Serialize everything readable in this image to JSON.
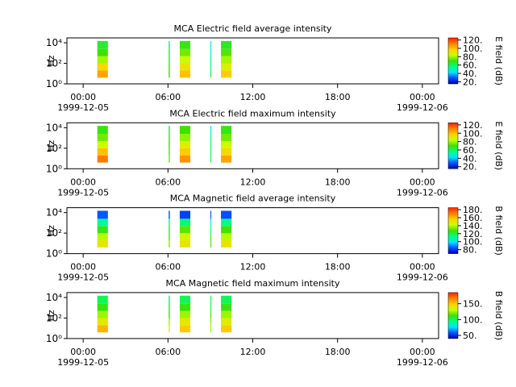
{
  "chart_data": [
    {
      "type": "spectrogram",
      "title": "MCA  Electric field average intensity",
      "y_label": "Hz",
      "colorbar_label": "E field (dB)",
      "log_y": true,
      "ylim": [
        1,
        30000
      ],
      "yticks": [
        {
          "value": 1,
          "label": "10⁰"
        },
        {
          "value": 100,
          "label": "10²"
        },
        {
          "value": 10000,
          "label": "10⁴"
        }
      ],
      "xlim": [
        "1999-12-04T22:51",
        "1999-12-06T01:09"
      ],
      "xticks": [
        {
          "value": "1999-12-05T00:00",
          "label": "00:00\n1999-12-05"
        },
        {
          "value": "1999-12-05T06:00",
          "label": "06:00"
        },
        {
          "value": "1999-12-05T12:00",
          "label": "12:00"
        },
        {
          "value": "1999-12-05T18:00",
          "label": "18:00"
        },
        {
          "value": "1999-12-06T00:00",
          "label": "00:00\n1999-12-06"
        }
      ],
      "clim": [
        15,
        125
      ],
      "cticks": [
        {
          "value": 20,
          "label": "20."
        },
        {
          "value": 40,
          "label": "40."
        },
        {
          "value": 60,
          "label": "60."
        },
        {
          "value": 80,
          "label": "80."
        },
        {
          "value": 100,
          "label": "100."
        },
        {
          "value": 120,
          "label": "120."
        }
      ],
      "colormap": [
        "#0000b4",
        "#0050ff",
        "#00e6ff",
        "#00ff80",
        "#40e000",
        "#c8ff00",
        "#ffd000",
        "#ff8000",
        "#ff2000"
      ],
      "freq_bins": [
        4,
        20,
        100,
        500,
        2500,
        15000
      ],
      "segments": [
        {
          "start": "1999-12-05T01:00",
          "end": "1999-12-05T01:45",
          "values": [
            105,
            95,
            80,
            70,
            65
          ]
        },
        {
          "start": "1999-12-05T06:03",
          "end": "1999-12-05T06:08",
          "values": [
            70,
            68,
            65,
            62,
            60
          ]
        },
        {
          "start": "1999-12-05T06:50",
          "end": "1999-12-05T07:35",
          "values": [
            100,
            92,
            85,
            75,
            68
          ]
        },
        {
          "start": "1999-12-05T09:00",
          "end": "1999-12-05T09:04",
          "values": [
            60,
            58,
            55,
            50,
            48
          ]
        },
        {
          "start": "1999-12-05T09:45",
          "end": "1999-12-05T10:30",
          "values": [
            98,
            88,
            80,
            72,
            66
          ]
        }
      ]
    },
    {
      "type": "spectrogram",
      "title": "MCA  Electric field maximum intensity",
      "y_label": "Hz",
      "colorbar_label": "E field (dB)",
      "log_y": true,
      "ylim": [
        1,
        30000
      ],
      "yticks": [
        {
          "value": 1,
          "label": "10⁰"
        },
        {
          "value": 100,
          "label": "10²"
        },
        {
          "value": 10000,
          "label": "10⁴"
        }
      ],
      "xlim": [
        "1999-12-04T22:51",
        "1999-12-06T01:09"
      ],
      "xticks": [
        {
          "value": "1999-12-05T00:00",
          "label": "00:00\n1999-12-05"
        },
        {
          "value": "1999-12-05T06:00",
          "label": "06:00"
        },
        {
          "value": "1999-12-05T12:00",
          "label": "12:00"
        },
        {
          "value": "1999-12-05T18:00",
          "label": "18:00"
        },
        {
          "value": "1999-12-06T00:00",
          "label": "00:00\n1999-12-06"
        }
      ],
      "clim": [
        15,
        125
      ],
      "cticks": [
        {
          "value": 20,
          "label": "20."
        },
        {
          "value": 40,
          "label": "40."
        },
        {
          "value": 60,
          "label": "60."
        },
        {
          "value": 80,
          "label": "80."
        },
        {
          "value": 100,
          "label": "100."
        },
        {
          "value": 120,
          "label": "120."
        }
      ],
      "colormap": [
        "#0000b4",
        "#0050ff",
        "#00e6ff",
        "#00ff80",
        "#40e000",
        "#c8ff00",
        "#ffd000",
        "#ff8000",
        "#ff2000"
      ],
      "freq_bins": [
        4,
        20,
        100,
        500,
        2500,
        15000
      ],
      "segments": [
        {
          "start": "1999-12-05T01:00",
          "end": "1999-12-05T01:45",
          "values": [
            112,
            100,
            85,
            75,
            68
          ]
        },
        {
          "start": "1999-12-05T06:03",
          "end": "1999-12-05T06:08",
          "values": [
            75,
            72,
            70,
            66,
            62
          ]
        },
        {
          "start": "1999-12-05T06:50",
          "end": "1999-12-05T07:35",
          "values": [
            108,
            98,
            88,
            78,
            70
          ]
        },
        {
          "start": "1999-12-05T09:00",
          "end": "1999-12-05T09:04",
          "values": [
            62,
            60,
            58,
            55,
            50
          ]
        },
        {
          "start": "1999-12-05T09:45",
          "end": "1999-12-05T10:30",
          "values": [
            105,
            95,
            85,
            75,
            68
          ]
        }
      ]
    },
    {
      "type": "spectrogram",
      "title": "MCA  Magnetic field average intensity",
      "y_label": "Hz",
      "colorbar_label": "B field (dB)",
      "log_y": true,
      "ylim": [
        1,
        30000
      ],
      "yticks": [
        {
          "value": 1,
          "label": "10⁰"
        },
        {
          "value": 100,
          "label": "10²"
        },
        {
          "value": 10000,
          "label": "10⁴"
        }
      ],
      "xlim": [
        "1999-12-04T22:51",
        "1999-12-06T01:09"
      ],
      "xticks": [
        {
          "value": "1999-12-05T00:00",
          "label": "00:00\n1999-12-05"
        },
        {
          "value": "1999-12-05T06:00",
          "label": "06:00"
        },
        {
          "value": "1999-12-05T12:00",
          "label": "12:00"
        },
        {
          "value": "1999-12-05T18:00",
          "label": "18:00"
        },
        {
          "value": "1999-12-06T00:00",
          "label": "00:00\n1999-12-06"
        }
      ],
      "clim": [
        70,
        185
      ],
      "cticks": [
        {
          "value": 80,
          "label": "80."
        },
        {
          "value": 100,
          "label": "100."
        },
        {
          "value": 120,
          "label": "120."
        },
        {
          "value": 140,
          "label": "140."
        },
        {
          "value": 160,
          "label": "160."
        },
        {
          "value": 180,
          "label": "180."
        }
      ],
      "colormap": [
        "#0000b4",
        "#0050ff",
        "#00e6ff",
        "#00ff80",
        "#40e000",
        "#c8ff00",
        "#ffd000",
        "#ff8000",
        "#ff2000"
      ],
      "freq_bins": [
        4,
        20,
        100,
        500,
        2500,
        15000
      ],
      "segments": [
        {
          "start": "1999-12-05T01:00",
          "end": "1999-12-05T01:45",
          "values": [
            150,
            140,
            125,
            110,
            85
          ]
        },
        {
          "start": "1999-12-05T06:03",
          "end": "1999-12-05T06:08",
          "values": [
            135,
            130,
            120,
            110,
            85
          ]
        },
        {
          "start": "1999-12-05T06:50",
          "end": "1999-12-05T07:35",
          "values": [
            150,
            145,
            130,
            115,
            82
          ]
        },
        {
          "start": "1999-12-05T09:00",
          "end": "1999-12-05T09:04",
          "values": [
            130,
            125,
            115,
            105,
            85
          ]
        },
        {
          "start": "1999-12-05T09:45",
          "end": "1999-12-05T10:30",
          "values": [
            150,
            140,
            128,
            112,
            84
          ]
        }
      ]
    },
    {
      "type": "spectrogram",
      "title": "MCA  Magnetic field maximum intensity",
      "y_label": "Hz",
      "colorbar_label": "B field (dB)",
      "log_y": true,
      "ylim": [
        1,
        30000
      ],
      "yticks": [
        {
          "value": 1,
          "label": "10⁰"
        },
        {
          "value": 100,
          "label": "10²"
        },
        {
          "value": 10000,
          "label": "10⁴"
        }
      ],
      "xlim": [
        "1999-12-04T22:51",
        "1999-12-06T01:09"
      ],
      "xticks": [
        {
          "value": "1999-12-05T00:00",
          "label": "00:00\n1999-12-05"
        },
        {
          "value": "1999-12-05T06:00",
          "label": "06:00"
        },
        {
          "value": "1999-12-05T12:00",
          "label": "12:00"
        },
        {
          "value": "1999-12-05T18:00",
          "label": "18:00"
        },
        {
          "value": "1999-12-06T00:00",
          "label": "00:00\n1999-12-06"
        }
      ],
      "clim": [
        40,
        185
      ],
      "cticks": [
        {
          "value": 50,
          "label": "50."
        },
        {
          "value": 100,
          "label": "100."
        },
        {
          "value": 150,
          "label": "150."
        }
      ],
      "colormap": [
        "#0000b4",
        "#0050ff",
        "#00e6ff",
        "#00ff80",
        "#40e000",
        "#c8ff00",
        "#ffd000",
        "#ff8000",
        "#ff2000"
      ],
      "freq_bins": [
        4,
        20,
        100,
        500,
        2500,
        15000
      ],
      "segments": [
        {
          "start": "1999-12-05T01:00",
          "end": "1999-12-05T01:45",
          "values": [
            155,
            140,
            125,
            110,
            100
          ]
        },
        {
          "start": "1999-12-05T06:03",
          "end": "1999-12-05T06:08",
          "values": [
            130,
            125,
            115,
            105,
            100
          ]
        },
        {
          "start": "1999-12-05T06:50",
          "end": "1999-12-05T07:35",
          "values": [
            150,
            140,
            125,
            110,
            100
          ]
        },
        {
          "start": "1999-12-05T09:00",
          "end": "1999-12-05T09:04",
          "values": [
            125,
            120,
            110,
            105,
            100
          ]
        },
        {
          "start": "1999-12-05T09:45",
          "end": "1999-12-05T10:30",
          "values": [
            150,
            138,
            125,
            110,
            100
          ]
        }
      ]
    }
  ]
}
